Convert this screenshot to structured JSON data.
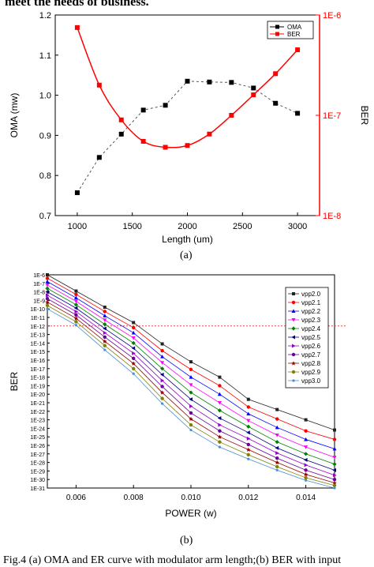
{
  "top_caption": "meet the needs of business.",
  "bottom_caption": "Fig.4 (a) OMA and ER curve with modulator arm length;(b) BER with input",
  "panel_a_label": "(a)",
  "panel_b_label": "(b)",
  "colors": {
    "oma": "#000000",
    "ber": "#ff0000",
    "threshold": "#e05050"
  },
  "chart_data": [
    {
      "type": "line",
      "xlabel": "Length (um)",
      "ylabel": "OMA (mw)",
      "y2label": "BER",
      "x": [
        1000,
        1200,
        1400,
        1600,
        1800,
        2000,
        2200,
        2400,
        2600,
        2800,
        3000
      ],
      "xlim": [
        800,
        3200
      ],
      "ylim": [
        0.7,
        1.2
      ],
      "y2lim_log10": [
        -8,
        -6
      ],
      "y2_scale": "log",
      "xticks": [
        "1000",
        "1500",
        "2000",
        "2500",
        "3000"
      ],
      "yticks": [
        "0.7",
        "0.8",
        "0.9",
        "1.0",
        "1.1",
        "1.2"
      ],
      "y2ticks": [
        "1E-8",
        "1E-7",
        "1E-6"
      ],
      "legend_position": "top-right",
      "series": [
        {
          "name": "OMA",
          "axis": "left",
          "values": [
            0.757,
            0.845,
            0.903,
            0.963,
            0.975,
            1.035,
            1.033,
            1.032,
            1.018,
            0.98,
            0.955
          ]
        },
        {
          "name": "BER",
          "axis": "right",
          "values": [
            7.5e-07,
            2e-07,
            9e-08,
            5.5e-08,
            4.8e-08,
            5e-08,
            6.5e-08,
            1e-07,
            1.6e-07,
            2.6e-07,
            4.5e-07
          ]
        }
      ]
    },
    {
      "type": "line",
      "xlabel": "POWER (w)",
      "ylabel": "BER",
      "y_scale": "log",
      "x": [
        0.005,
        0.006,
        0.007,
        0.008,
        0.009,
        0.01,
        0.011,
        0.012,
        0.013,
        0.014,
        0.015
      ],
      "xlim": [
        0.005,
        0.015
      ],
      "ylim_log10": [
        -31,
        -6
      ],
      "xticks": [
        "0.006",
        "0.008",
        "0.010",
        "0.012",
        "0.014"
      ],
      "yticks": [
        "1E-6",
        "1E-7",
        "1E-8",
        "1E-9",
        "1E-10",
        "1E-11",
        "1E-12",
        "1E-13",
        "1E-14",
        "1E-15",
        "1E-16",
        "1E-17",
        "1E-18",
        "1E-19",
        "1E-20",
        "1E-21",
        "1E-22",
        "1E-23",
        "1E-24",
        "1E-25",
        "1E-26",
        "1E-27",
        "1E-28",
        "1E-29",
        "1E-30",
        "1E-31"
      ],
      "threshold_log10": -12,
      "legend_position": "top-right",
      "series": [
        {
          "name": "vpp2.0",
          "color": "#222222",
          "marker": "square",
          "log10_values": [
            -6.0,
            -7.9,
            -9.8,
            -11.6,
            -14.1,
            -16.2,
            -18.0,
            -20.6,
            -21.8,
            -23.0,
            -24.2
          ]
        },
        {
          "name": "vpp2.1",
          "color": "#ff0000",
          "marker": "circle",
          "log10_values": [
            -6.4,
            -8.3,
            -10.3,
            -12.2,
            -14.9,
            -17.1,
            -19.0,
            -21.5,
            -22.9,
            -24.3,
            -25.3
          ]
        },
        {
          "name": "vpp2.2",
          "color": "#0000ff",
          "marker": "triangle",
          "log10_values": [
            -6.8,
            -8.7,
            -10.8,
            -12.8,
            -15.6,
            -18.0,
            -20.0,
            -22.3,
            -23.9,
            -25.3,
            -26.4
          ]
        },
        {
          "name": "vpp2.3",
          "color": "#ff00ff",
          "marker": "tri-down",
          "log10_values": [
            -7.2,
            -9.1,
            -11.3,
            -13.4,
            -16.3,
            -18.9,
            -21.0,
            -23.1,
            -24.8,
            -26.2,
            -27.4
          ]
        },
        {
          "name": "vpp2.4",
          "color": "#008000",
          "marker": "diamond",
          "log10_values": [
            -7.6,
            -9.5,
            -11.8,
            -14.0,
            -17.0,
            -19.8,
            -21.9,
            -23.8,
            -25.6,
            -27.0,
            -28.2
          ]
        },
        {
          "name": "vpp2.5",
          "color": "#000080",
          "marker": "tri-left",
          "log10_values": [
            -8.0,
            -9.9,
            -12.3,
            -14.6,
            -17.7,
            -20.6,
            -22.8,
            -24.5,
            -26.3,
            -27.7,
            -28.9
          ]
        },
        {
          "name": "vpp2.6",
          "color": "#9900cc",
          "marker": "tri-right",
          "log10_values": [
            -8.4,
            -10.3,
            -12.8,
            -15.2,
            -18.4,
            -21.4,
            -23.6,
            -25.2,
            -26.9,
            -28.3,
            -29.5
          ]
        },
        {
          "name": "vpp2.7",
          "color": "#660099",
          "marker": "hexagon",
          "log10_values": [
            -8.8,
            -10.7,
            -13.3,
            -15.8,
            -19.1,
            -22.2,
            -24.3,
            -25.9,
            -27.5,
            -28.9,
            -30.0
          ]
        },
        {
          "name": "vpp2.8",
          "color": "#990000",
          "marker": "star",
          "log10_values": [
            -9.2,
            -11.1,
            -13.8,
            -16.4,
            -19.8,
            -22.9,
            -25.0,
            -26.5,
            -28.0,
            -29.4,
            -30.4
          ]
        },
        {
          "name": "vpp2.9",
          "color": "#808000",
          "marker": "pentagon",
          "log10_values": [
            -9.6,
            -11.5,
            -14.3,
            -17.0,
            -20.5,
            -23.6,
            -25.6,
            -27.1,
            -28.5,
            -29.8,
            -30.7
          ]
        },
        {
          "name": "vpp3.0",
          "color": "#4a8fd4",
          "marker": "small",
          "log10_values": [
            -10.0,
            -11.9,
            -14.8,
            -17.6,
            -21.1,
            -24.2,
            -26.2,
            -27.6,
            -28.9,
            -30.1,
            -31.0
          ]
        }
      ]
    }
  ]
}
